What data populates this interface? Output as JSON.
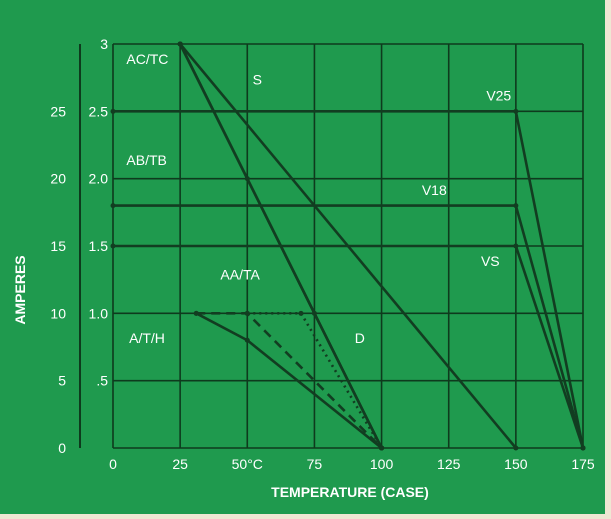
{
  "colors": {
    "background": "#1f9a4e",
    "grid": "#0e3a1d",
    "text": "#ffffff",
    "curve": "#123d21",
    "page": "#efe7d3"
  },
  "chart_data": {
    "type": "line",
    "title": "",
    "xlabel": "TEMPERATURE (CASE)",
    "ylabel": "AMPERES",
    "xlim": [
      0,
      175
    ],
    "ylim": [
      0,
      3
    ],
    "grid": true,
    "x_ticks": [
      0,
      25,
      50,
      75,
      100,
      125,
      150,
      175
    ],
    "x_tick_labels": [
      "0",
      "25",
      "50°C",
      "75",
      "100",
      "125",
      "150",
      "175"
    ],
    "y_ticks": [
      0,
      0.5,
      1.0,
      1.5,
      2.0,
      2.5,
      3
    ],
    "y_tick_labels_inner": [
      "",
      ".5",
      "1.0",
      "1.5",
      "2.0",
      "2.5",
      "3"
    ],
    "y_tick_labels_outer": [
      "0",
      "5",
      "10",
      "15",
      "20",
      "25",
      ""
    ],
    "series": [
      {
        "name": "AC/TC",
        "style": "solid",
        "x": [
          25,
          100
        ],
        "y": [
          3,
          0
        ]
      },
      {
        "name": "S",
        "style": "solid",
        "x": [
          25,
          150
        ],
        "y": [
          3,
          0
        ]
      },
      {
        "name": "AB/TB",
        "style": "solid",
        "x": [
          25,
          50,
          75,
          100
        ],
        "y": [
          3,
          2,
          1,
          0
        ]
      },
      {
        "name": "A/T/H",
        "style": "solid",
        "x": [
          31,
          50,
          100
        ],
        "y": [
          1,
          0.8,
          0
        ]
      },
      {
        "name": "AA/TA",
        "style": "dashed",
        "x": [
          31,
          50,
          100
        ],
        "y": [
          1,
          1,
          0
        ]
      },
      {
        "name": "D",
        "style": "dotted",
        "x": [
          50,
          70,
          100
        ],
        "y": [
          1,
          1,
          0
        ]
      },
      {
        "name": "V25",
        "style": "solid",
        "x": [
          0,
          150,
          175
        ],
        "y": [
          2.5,
          2.5,
          0
        ]
      },
      {
        "name": "V18",
        "style": "solid",
        "x": [
          0,
          150,
          175
        ],
        "y": [
          1.8,
          1.8,
          0
        ]
      },
      {
        "name": "VS",
        "style": "solid",
        "x": [
          0,
          150,
          175
        ],
        "y": [
          1.5,
          1.5,
          0
        ]
      }
    ],
    "annotations": [
      {
        "text": "AC/TC",
        "x": 5,
        "y": 2.85
      },
      {
        "text": "S",
        "x": 52,
        "y": 2.7
      },
      {
        "text": "V25",
        "x": 139,
        "y": 2.58
      },
      {
        "text": "AB/TB",
        "x": 5,
        "y": 2.1
      },
      {
        "text": "V18",
        "x": 115,
        "y": 1.88
      },
      {
        "text": "VS",
        "x": 137,
        "y": 1.35
      },
      {
        "text": "AA/TA",
        "x": 40,
        "y": 1.25
      },
      {
        "text": "A/T/H",
        "x": 6,
        "y": 0.78
      },
      {
        "text": "D",
        "x": 90,
        "y": 0.78
      }
    ]
  }
}
